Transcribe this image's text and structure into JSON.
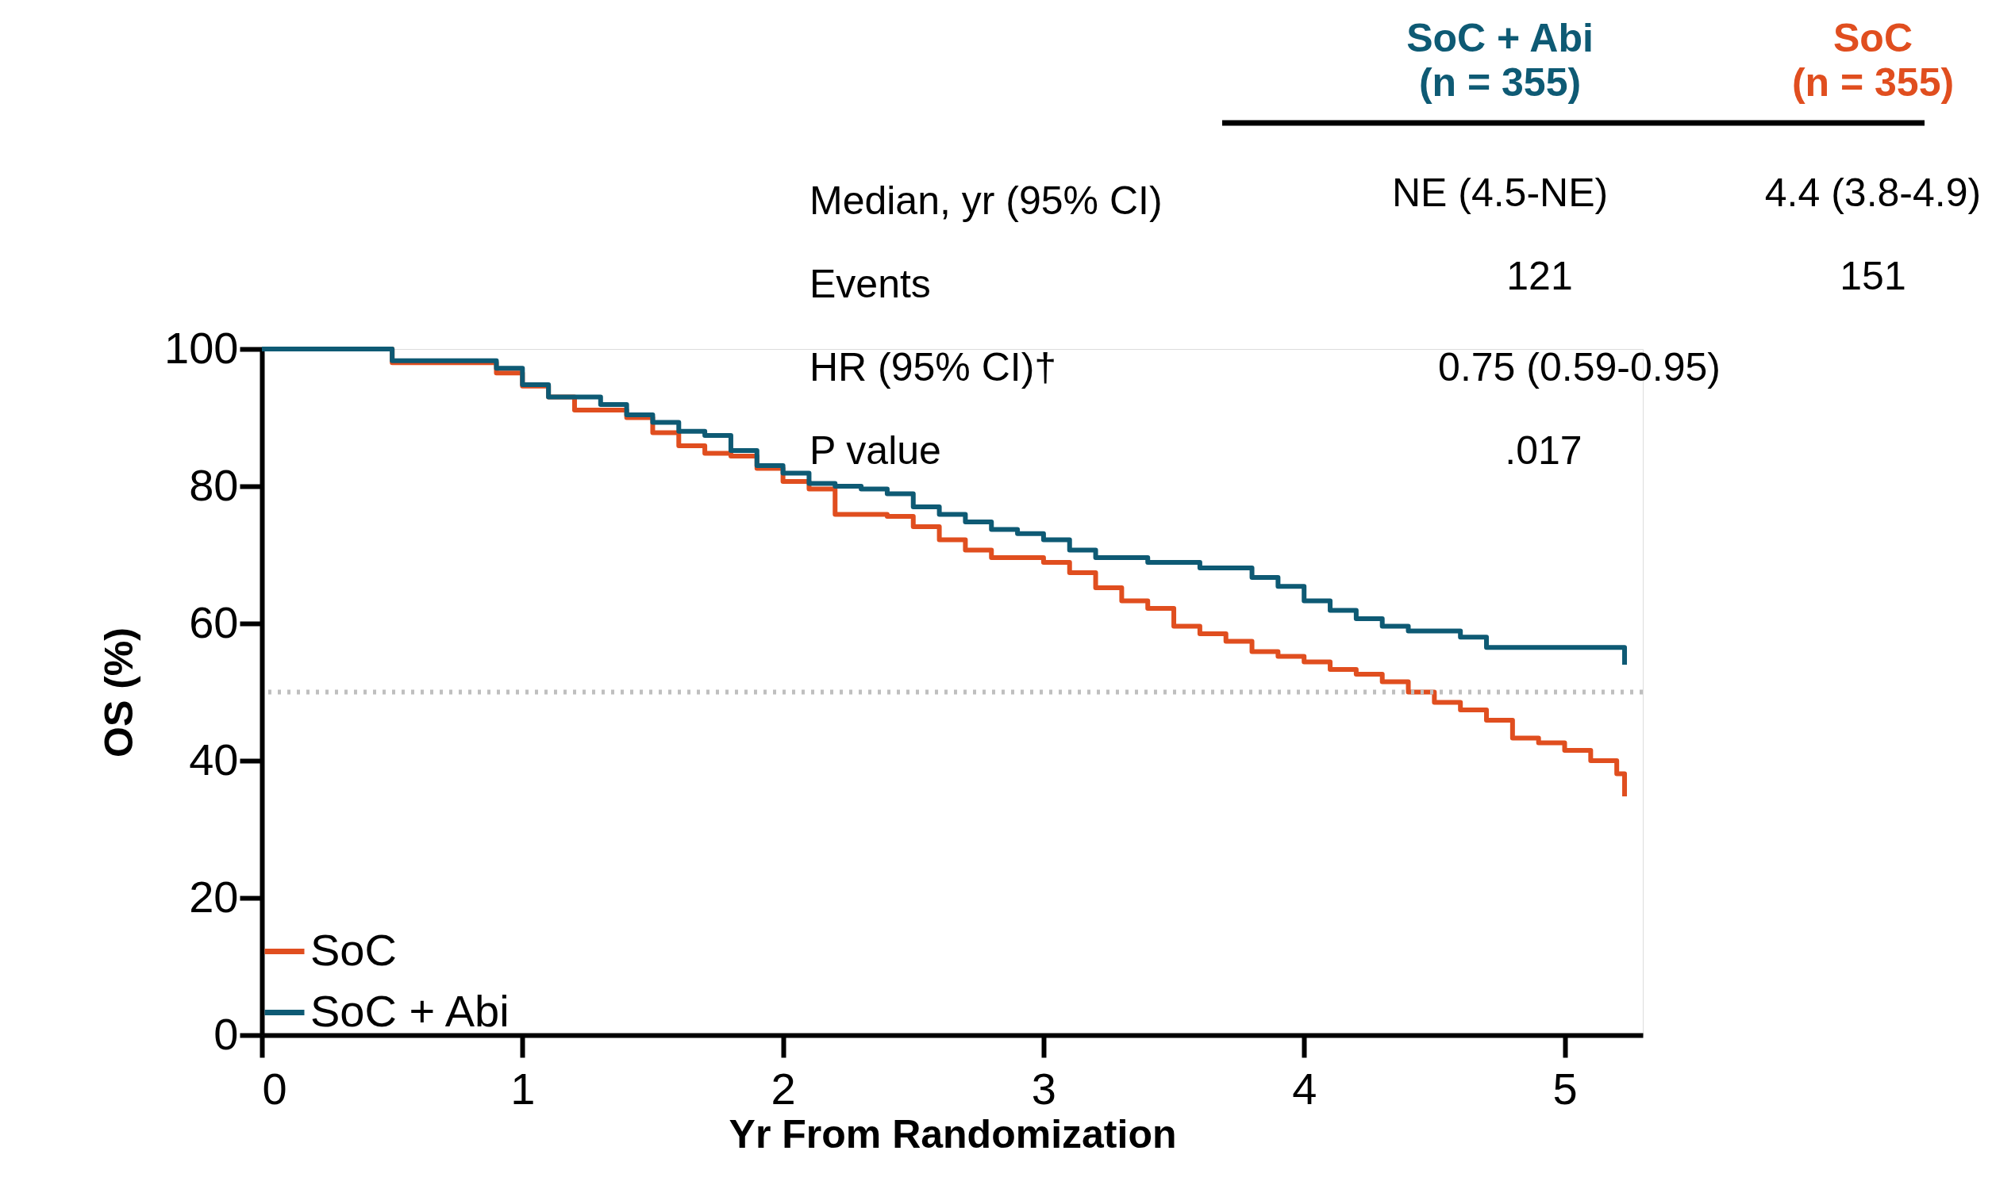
{
  "chart_data": {
    "type": "step",
    "xlabel": "Yr From Randomization",
    "ylabel": "OS (%)",
    "xlim": [
      0,
      5.3
    ],
    "xticks": [
      0,
      1,
      2,
      3,
      4,
      5
    ],
    "ylim": [
      0,
      100
    ],
    "yticks": [
      0,
      20,
      40,
      60,
      80,
      100
    ],
    "grid": false,
    "legend": "bottom left",
    "line_style": "solid",
    "marker": "none",
    "ref_lines": [
      {
        "axis": "y",
        "value": 50,
        "color": "#bfbfbf",
        "line_style": "dotted"
      }
    ],
    "series": [
      {
        "name": "SoC",
        "color": "#e04e1f",
        "x": [
          0,
          0.5,
          0.9,
          1.0,
          1.1,
          1.2,
          1.4,
          1.5,
          1.6,
          1.7,
          1.8,
          1.9,
          2.0,
          2.1,
          2.2,
          2.4,
          2.5,
          2.6,
          2.7,
          2.8,
          3.0,
          3.1,
          3.2,
          3.3,
          3.4,
          3.5,
          3.6,
          3.7,
          3.8,
          3.9,
          4.0,
          4.1,
          4.2,
          4.3,
          4.4,
          4.5,
          4.6,
          4.7,
          4.8,
          4.9,
          5.0,
          5.1,
          5.2,
          5.23
        ],
        "values": [
          100,
          98,
          96.5,
          94.6,
          93,
          91.1,
          90,
          87.8,
          85.9,
          84.8,
          84.4,
          82.6,
          80.7,
          79.6,
          75.9,
          75.6,
          74.1,
          72.2,
          70.7,
          69.6,
          68.9,
          67.4,
          65.2,
          63.3,
          62.2,
          59.6,
          58.5,
          57.4,
          55.9,
          55.2,
          54.4,
          53.3,
          52.6,
          51.5,
          50,
          48.5,
          47.4,
          45.9,
          43.3,
          42.6,
          41.5,
          40,
          38.1,
          34.8
        ]
      },
      {
        "name": "SoC + Abi",
        "color": "#0e5a74",
        "x": [
          0,
          0.5,
          0.9,
          1.0,
          1.1,
          1.3,
          1.4,
          1.5,
          1.6,
          1.7,
          1.8,
          1.9,
          2.0,
          2.1,
          2.2,
          2.3,
          2.4,
          2.5,
          2.6,
          2.7,
          2.8,
          2.9,
          3.0,
          3.1,
          3.2,
          3.4,
          3.6,
          3.8,
          3.9,
          4.0,
          4.1,
          4.2,
          4.3,
          4.4,
          4.6,
          4.7,
          5.2,
          5.23
        ],
        "values": [
          100,
          98.3,
          97.2,
          94.8,
          93,
          91.9,
          90.4,
          89.3,
          88,
          87.4,
          85.2,
          83,
          81.9,
          80.4,
          80,
          79.6,
          78.9,
          77,
          75.9,
          74.8,
          73.7,
          73.1,
          72.2,
          70.7,
          69.6,
          68.9,
          68.1,
          66.7,
          65.4,
          63.3,
          61.9,
          60.7,
          59.6,
          58.9,
          58,
          56.5,
          56.5,
          54
        ]
      }
    ],
    "annotations": [
      "SoC + Abi\n(n = 355)",
      "SoC\n(n = 355)",
      "Median, yr (95% CI)",
      "NE (4.5-NE)",
      "4.4 (3.8-4.9)",
      "Events",
      "121",
      "151",
      "HR (95% CI)†",
      "0.75 (0.59-0.95)",
      "P value",
      ".017"
    ]
  }
}
